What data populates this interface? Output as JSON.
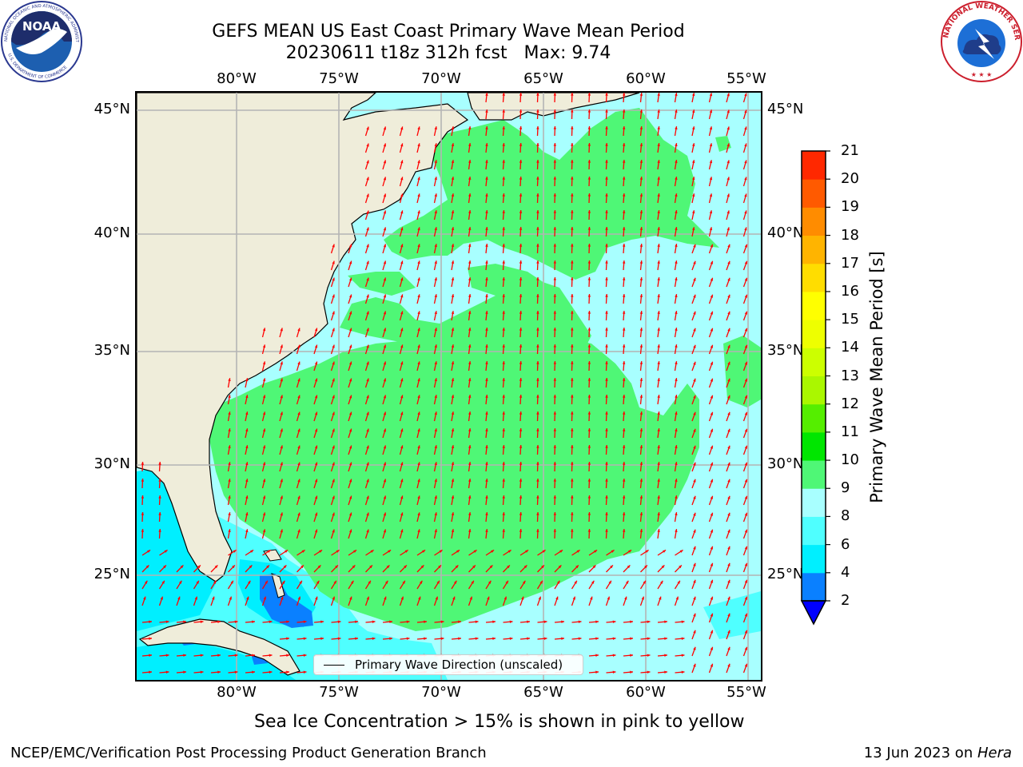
{
  "title": {
    "line1": "GEFS MEAN US East Coast Primary Wave Mean Period",
    "line2": "20230611 t18z 312h fcst   Max: 9.74"
  },
  "logos": {
    "noaa_text": "NOAA",
    "noaa_ring": "NATIONAL OCEANIC AND ATMOSPHERIC ADMINISTRATION",
    "noaa_bottom": "U.S. DEPARTMENT OF COMMERCE",
    "nws_ring": "NATIONAL WEATHER SERVICE"
  },
  "map": {
    "lon_labels": [
      "80°W",
      "75°W",
      "70°W",
      "65°W",
      "60°W",
      "55°W"
    ],
    "lat_labels": [
      "45°N",
      "40°N",
      "35°N",
      "30°N",
      "25°N"
    ],
    "colors": {
      "land": "#efedda",
      "sea_8_9": "#a8ffff",
      "sea_9_10": "#4ff776",
      "sea_6_8": "#4fffff",
      "sea_4_6": "#00efff",
      "sea_2_4": "#0a80ff",
      "arrow": "#ff0000"
    },
    "legend_label": "Primary Wave Direction (unscaled)"
  },
  "colorbar": {
    "label": "Primary Wave Mean Period [s]",
    "ticks": [
      "2",
      "4",
      "6",
      "8",
      "9",
      "10",
      "11",
      "12",
      "13",
      "14",
      "15",
      "16",
      "17",
      "18",
      "19",
      "20",
      "21"
    ],
    "colors": [
      "#0a80ff",
      "#00efff",
      "#4fffff",
      "#a8ffff",
      "#4ff776",
      "#00e600",
      "#55ee00",
      "#aaf700",
      "#ccff00",
      "#eeff00",
      "#ffff00",
      "#ffdd00",
      "#ffb400",
      "#ff8c00",
      "#ff5a00",
      "#ff2800",
      "#ff0000"
    ],
    "under_color": "#0000ff"
  },
  "subtitle": "Sea Ice Concentration > 15% is shown in pink to yellow",
  "footer": {
    "left": "NCEP/EMC/Verification Post Processing Product Generation Branch",
    "date": "13 Jun 2023 on ",
    "host": "Hera"
  }
}
